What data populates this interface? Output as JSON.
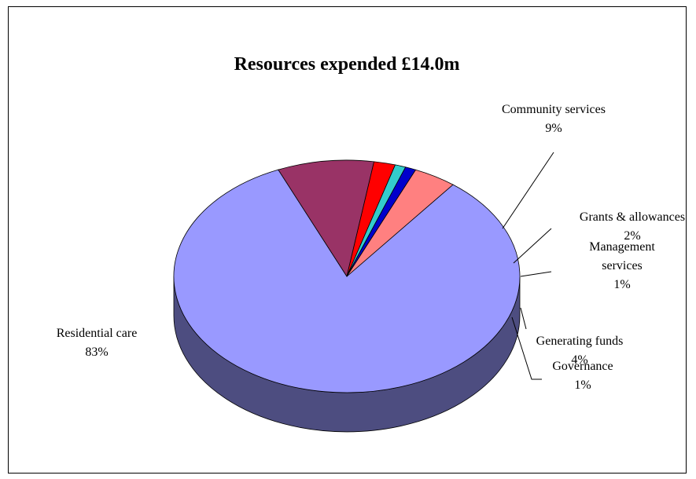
{
  "chart_data": {
    "type": "pie",
    "title": "Resources expended £14.0m",
    "three_d": true,
    "legend": "none",
    "categories": [
      "Residential care",
      "Community services",
      "Grants & allowances",
      "Management services",
      "Governance",
      "Generating funds"
    ],
    "values": [
      83,
      9,
      2,
      1,
      1,
      4
    ],
    "value_labels": [
      "83%",
      "9%",
      "2%",
      "1%",
      "1%",
      "4%"
    ],
    "slice_labels": [
      {
        "lines": [
          "Residential care",
          "83%"
        ]
      },
      {
        "lines": [
          "Community services",
          "9%"
        ]
      },
      {
        "lines": [
          "Grants & allowances",
          "2%"
        ]
      },
      {
        "lines": [
          "Management",
          "services",
          "1%"
        ]
      },
      {
        "lines": [
          "Governance",
          "1%"
        ]
      },
      {
        "lines": [
          "Generating funds",
          "4%"
        ]
      }
    ],
    "colors": [
      "#9999ff",
      "#993366",
      "#ff0000",
      "#33cccc",
      "#0000cc",
      "#ff8080"
    ]
  }
}
